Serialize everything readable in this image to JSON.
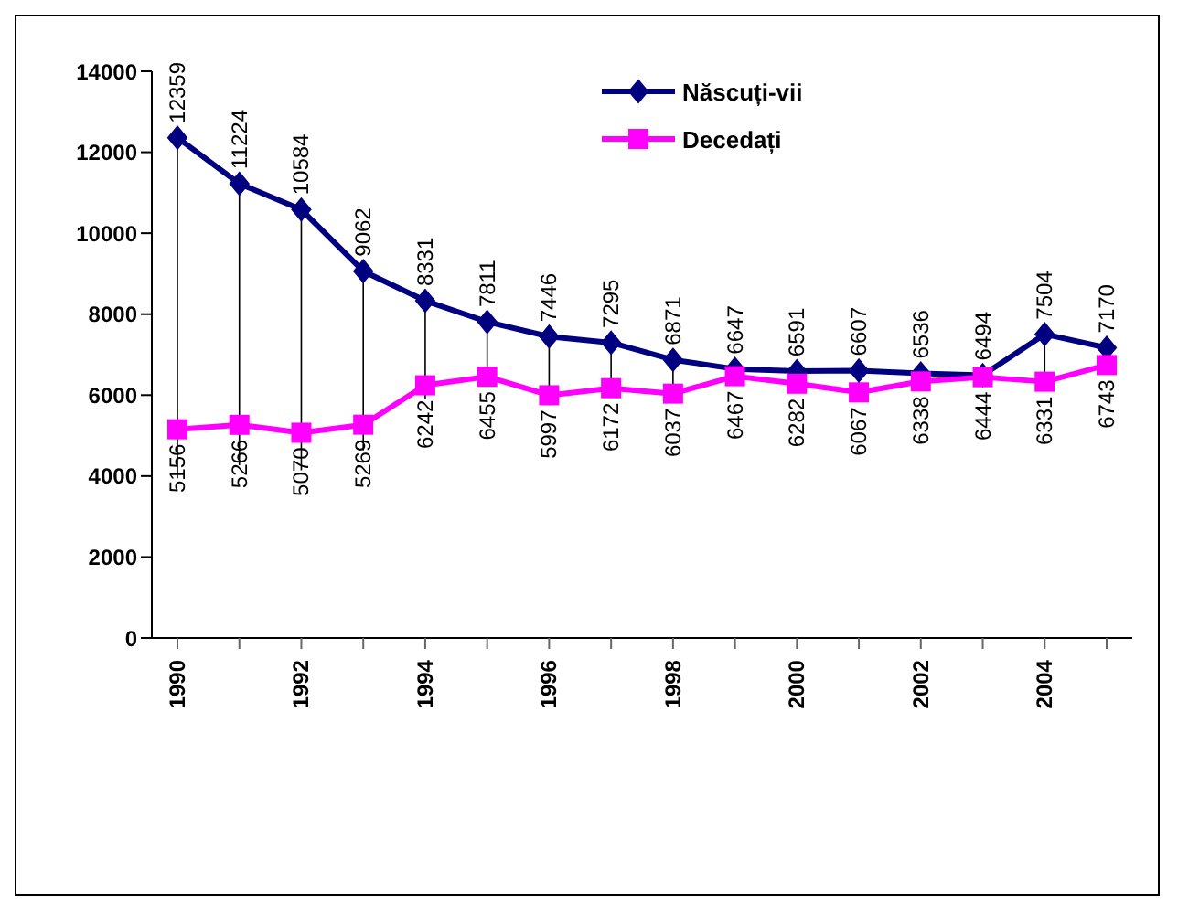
{
  "chart_data": {
    "type": "line",
    "categories": [
      "1990",
      null,
      "1992",
      null,
      "1994",
      null,
      "1996",
      null,
      "1998",
      null,
      "2000",
      null,
      "2002",
      null,
      "2004",
      null
    ],
    "series": [
      {
        "name": "Născuți-vii",
        "color": "#000080",
        "marker": "diamond",
        "values": [
          12359,
          11224,
          10584,
          9062,
          8331,
          7811,
          7446,
          7295,
          6871,
          6647,
          6591,
          6607,
          6536,
          6494,
          7504,
          7170
        ]
      },
      {
        "name": "Decedați",
        "color": "#ff00ff",
        "marker": "square",
        "values": [
          5156,
          5266,
          5070,
          5269,
          6242,
          6455,
          5997,
          6172,
          6037,
          6467,
          6282,
          6067,
          6338,
          6444,
          6331,
          6743
        ]
      }
    ],
    "ylim": [
      0,
      14000
    ],
    "yticks": [
      0,
      2000,
      4000,
      6000,
      8000,
      10000,
      12000,
      14000
    ],
    "grid": false,
    "legend": "top right",
    "data_labels": true
  }
}
